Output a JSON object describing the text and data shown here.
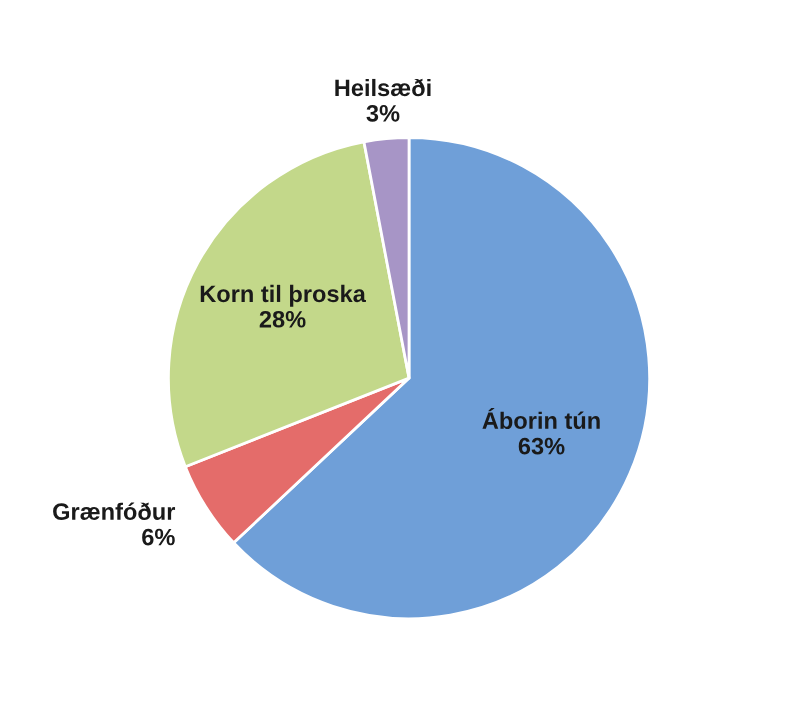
{
  "chart_data": {
    "type": "pie",
    "categories": [
      "Áborin tún",
      "Grænfóður",
      "Korn til þroska",
      "Heilsæði"
    ],
    "values": [
      63,
      6,
      28,
      3
    ],
    "colors": [
      "#6f9fd8",
      "#e46c6a",
      "#c3d88a",
      "#a795c6"
    ],
    "value_labels": [
      "63%",
      "6%",
      "28%",
      "3%"
    ],
    "legend": false
  }
}
